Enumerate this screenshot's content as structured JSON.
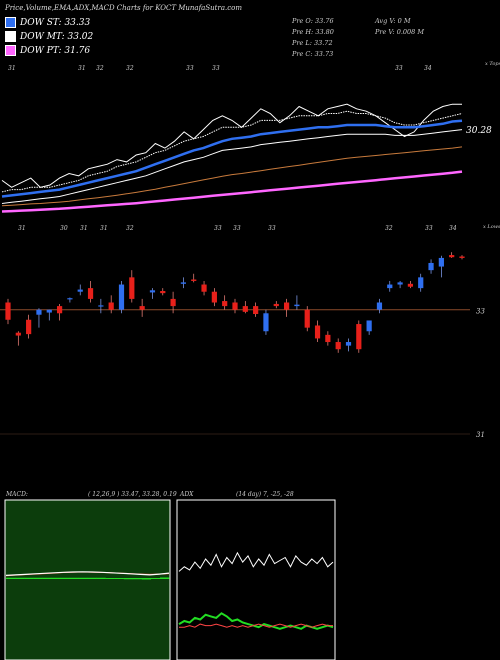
{
  "header": {
    "title": "Price,Volume,EMA,ADX,MACD Charts for KOCT MunafaSutra.com"
  },
  "legend": [
    {
      "label": "DOW ST: 33.33",
      "color": "#2f6ff0"
    },
    {
      "label": "DOW MT: 33.02",
      "color": "#ffffff"
    },
    {
      "label": "DOW PT: 31.76",
      "color": "#ff66ff"
    }
  ],
  "stats": {
    "open": "Pre  O: 33.76",
    "high": "Pre  H: 33.80",
    "low": "Pre  L: 33.72",
    "close": "Pre  C: 33.73",
    "avg_volume": "Avg V: 0  M",
    "pre_volume": "Pre  V: 0.008  M"
  },
  "chart_data": [
    {
      "type": "line",
      "name": "ema-price-panel",
      "corner_label": "x Tops",
      "last_value_label": "30.28",
      "top_ticks": [
        "31",
        "31",
        "32",
        "32",
        "33",
        "33",
        "33",
        "34"
      ],
      "series": [
        {
          "color": "#ffffff",
          "values": [
            27.7,
            27.4,
            27.6,
            27.8,
            27.4,
            27.5,
            27.8,
            28.0,
            27.9,
            28.2,
            28.3,
            28.4,
            28.6,
            28.5,
            28.8,
            28.9,
            29.3,
            29.1,
            29.4,
            29.8,
            29.5,
            29.9,
            30.3,
            30.5,
            30.3,
            30.0,
            30.4,
            30.8,
            30.6,
            30.2,
            30.5,
            30.9,
            30.7,
            30.5,
            30.8,
            30.9,
            31.0,
            30.8,
            30.7,
            30.5,
            30.2,
            29.9,
            29.6,
            29.8,
            30.3,
            30.7,
            30.9,
            31.0,
            31.0
          ]
        },
        {
          "color": "#ffffff",
          "values": [
            27.2,
            27.3,
            27.3,
            27.4,
            27.4,
            27.4,
            27.5,
            27.6,
            27.7,
            27.9,
            28.0,
            28.1,
            28.3,
            28.4,
            28.5,
            28.7,
            28.9,
            29.0,
            29.2,
            29.4,
            29.5,
            29.6,
            29.8,
            30.0,
            30.0,
            30.0,
            30.1,
            30.3,
            30.3,
            30.3,
            30.4,
            30.5,
            30.5,
            30.5,
            30.6,
            30.6,
            30.7,
            30.6,
            30.6,
            30.5,
            30.4,
            30.2,
            30.1,
            30.1,
            30.2,
            30.3,
            30.4,
            30.5,
            30.6
          ]
        },
        {
          "color": "#2f6ff0",
          "values": [
            27.0,
            27.05,
            27.1,
            27.15,
            27.2,
            27.25,
            27.3,
            27.4,
            27.5,
            27.6,
            27.7,
            27.8,
            27.9,
            28.0,
            28.1,
            28.25,
            28.4,
            28.55,
            28.7,
            28.85,
            29.0,
            29.1,
            29.25,
            29.4,
            29.5,
            29.55,
            29.6,
            29.7,
            29.75,
            29.8,
            29.85,
            29.9,
            29.95,
            30.0,
            30.0,
            30.05,
            30.1,
            30.1,
            30.1,
            30.1,
            30.05,
            30.0,
            30.0,
            30.0,
            30.05,
            30.1,
            30.15,
            30.25,
            30.28
          ]
        },
        {
          "color": "#ffffff",
          "values": [
            26.7,
            26.75,
            26.8,
            26.85,
            26.9,
            26.95,
            27.0,
            27.1,
            27.2,
            27.3,
            27.4,
            27.5,
            27.6,
            27.7,
            27.8,
            27.9,
            28.05,
            28.2,
            28.35,
            28.5,
            28.6,
            28.7,
            28.85,
            29.0,
            29.05,
            29.1,
            29.15,
            29.25,
            29.3,
            29.35,
            29.4,
            29.45,
            29.5,
            29.55,
            29.6,
            29.65,
            29.7,
            29.7,
            29.7,
            29.7,
            29.7,
            29.65,
            29.65,
            29.65,
            29.7,
            29.75,
            29.8,
            29.85,
            29.9
          ]
        },
        {
          "color": "#c77a3c",
          "values": [
            26.6,
            26.62,
            26.65,
            26.68,
            26.7,
            26.73,
            26.76,
            26.8,
            26.85,
            26.9,
            26.95,
            27.0,
            27.06,
            27.12,
            27.18,
            27.25,
            27.32,
            27.4,
            27.48,
            27.56,
            27.64,
            27.72,
            27.8,
            27.88,
            27.95,
            28.0,
            28.06,
            28.12,
            28.18,
            28.24,
            28.3,
            28.36,
            28.42,
            28.48,
            28.54,
            28.6,
            28.66,
            28.7,
            28.74,
            28.78,
            28.82,
            28.86,
            28.9,
            28.94,
            28.98,
            29.02,
            29.06,
            29.1,
            29.15
          ]
        },
        {
          "color": "#ff66ff",
          "values": [
            26.35,
            26.37,
            26.39,
            26.41,
            26.43,
            26.45,
            26.47,
            26.5,
            26.53,
            26.56,
            26.59,
            26.62,
            26.65,
            26.68,
            26.71,
            26.75,
            26.79,
            26.83,
            26.87,
            26.91,
            26.95,
            26.99,
            27.03,
            27.07,
            27.11,
            27.15,
            27.19,
            27.23,
            27.27,
            27.31,
            27.35,
            27.39,
            27.43,
            27.47,
            27.51,
            27.55,
            27.59,
            27.63,
            27.67,
            27.71,
            27.75,
            27.79,
            27.83,
            27.87,
            27.91,
            27.95,
            27.99,
            28.03,
            28.08
          ]
        }
      ]
    },
    {
      "type": "candlestick",
      "name": "price-candles",
      "corner_label": "x Lows",
      "top_ticks": [
        "31",
        "30",
        "31",
        "31",
        "32",
        "33",
        "33",
        "33",
        "32",
        "33",
        "34"
      ],
      "price_labels": [
        "33",
        "31"
      ],
      "reference_line": 33.0,
      "candles": [
        {
          "o": 33.1,
          "h": 33.15,
          "l": 32.8,
          "c": 32.86
        },
        {
          "o": 32.68,
          "h": 32.7,
          "l": 32.5,
          "c": 32.64
        },
        {
          "o": 32.86,
          "h": 32.93,
          "l": 32.6,
          "c": 32.66
        },
        {
          "o": 32.93,
          "h": 33.02,
          "l": 32.75,
          "c": 33.0
        },
        {
          "o": 32.96,
          "h": 33.0,
          "l": 32.85,
          "c": 33.0
        },
        {
          "o": 33.05,
          "h": 33.08,
          "l": 32.85,
          "c": 32.95
        },
        {
          "o": 33.15,
          "h": 33.17,
          "l": 33.1,
          "c": 33.16
        },
        {
          "o": 33.25,
          "h": 33.35,
          "l": 33.2,
          "c": 33.28
        },
        {
          "o": 33.3,
          "h": 33.4,
          "l": 33.1,
          "c": 33.15
        },
        {
          "o": 33.05,
          "h": 33.15,
          "l": 32.95,
          "c": 33.06
        },
        {
          "o": 33.1,
          "h": 33.2,
          "l": 32.95,
          "c": 33.0
        },
        {
          "o": 33.0,
          "h": 33.4,
          "l": 32.95,
          "c": 33.35
        },
        {
          "o": 33.45,
          "h": 33.55,
          "l": 33.1,
          "c": 33.15
        },
        {
          "o": 33.05,
          "h": 33.15,
          "l": 32.9,
          "c": 33.0
        },
        {
          "o": 33.24,
          "h": 33.3,
          "l": 33.15,
          "c": 33.27
        },
        {
          "o": 33.26,
          "h": 33.3,
          "l": 33.2,
          "c": 33.23
        },
        {
          "o": 33.15,
          "h": 33.25,
          "l": 32.95,
          "c": 33.05
        },
        {
          "o": 33.36,
          "h": 33.45,
          "l": 33.3,
          "c": 33.38
        },
        {
          "o": 33.42,
          "h": 33.5,
          "l": 33.38,
          "c": 33.4
        },
        {
          "o": 33.35,
          "h": 33.4,
          "l": 33.2,
          "c": 33.25
        },
        {
          "o": 33.25,
          "h": 33.3,
          "l": 33.05,
          "c": 33.1
        },
        {
          "o": 33.12,
          "h": 33.2,
          "l": 33.0,
          "c": 33.05
        },
        {
          "o": 33.1,
          "h": 33.15,
          "l": 32.95,
          "c": 33.0
        },
        {
          "o": 33.05,
          "h": 33.12,
          "l": 32.95,
          "c": 32.97
        },
        {
          "o": 33.05,
          "h": 33.1,
          "l": 32.9,
          "c": 32.94
        },
        {
          "o": 32.7,
          "h": 33.0,
          "l": 32.65,
          "c": 32.95
        },
        {
          "o": 33.08,
          "h": 33.12,
          "l": 33.02,
          "c": 33.05
        },
        {
          "o": 33.1,
          "h": 33.15,
          "l": 32.9,
          "c": 33.0
        },
        {
          "o": 33.05,
          "h": 33.2,
          "l": 33.0,
          "c": 33.07
        },
        {
          "o": 33.0,
          "h": 33.05,
          "l": 32.7,
          "c": 32.75
        },
        {
          "o": 32.78,
          "h": 32.85,
          "l": 32.55,
          "c": 32.6
        },
        {
          "o": 32.65,
          "h": 32.7,
          "l": 32.5,
          "c": 32.55
        },
        {
          "o": 32.55,
          "h": 32.6,
          "l": 32.4,
          "c": 32.45
        },
        {
          "o": 32.5,
          "h": 32.6,
          "l": 32.42,
          "c": 32.55
        },
        {
          "o": 32.8,
          "h": 32.85,
          "l": 32.4,
          "c": 32.45
        },
        {
          "o": 32.7,
          "h": 32.85,
          "l": 32.65,
          "c": 32.85
        },
        {
          "o": 33.0,
          "h": 33.15,
          "l": 32.95,
          "c": 33.1
        },
        {
          "o": 33.3,
          "h": 33.4,
          "l": 33.25,
          "c": 33.35
        },
        {
          "o": 33.35,
          "h": 33.4,
          "l": 33.3,
          "c": 33.38
        },
        {
          "o": 33.36,
          "h": 33.4,
          "l": 33.3,
          "c": 33.32
        },
        {
          "o": 33.3,
          "h": 33.5,
          "l": 33.25,
          "c": 33.45
        },
        {
          "o": 33.55,
          "h": 33.7,
          "l": 33.5,
          "c": 33.65
        },
        {
          "o": 33.6,
          "h": 33.75,
          "l": 33.45,
          "c": 33.72
        },
        {
          "o": 33.76,
          "h": 33.8,
          "l": 33.72,
          "c": 33.73
        },
        {
          "o": 33.74,
          "h": 33.76,
          "l": 33.7,
          "c": 33.72
        }
      ]
    },
    {
      "type": "line",
      "name": "macd-panel",
      "title": "MACD:",
      "params": "( 12,26,9 ) 33.47, 33.28, 0.19",
      "series": [
        {
          "color": "#ffffff",
          "values": [
            0.1,
            0.12,
            0.14,
            0.16,
            0.18,
            0.2,
            0.22,
            0.23,
            0.24,
            0.23,
            0.22,
            0.2,
            0.18,
            0.16,
            0.14,
            0.12,
            0.15,
            0.19
          ]
        },
        {
          "color": "#ff4444",
          "values": [
            0.09,
            0.11,
            0.13,
            0.15,
            0.17,
            0.19,
            0.21,
            0.22,
            0.23,
            0.22,
            0.21,
            0.2,
            0.18,
            0.17,
            0.15,
            0.14,
            0.15,
            0.17
          ]
        },
        {
          "color": "#22dd22",
          "values": [
            0.01,
            0.01,
            0.01,
            0.01,
            0.01,
            0.01,
            0.01,
            0.01,
            0.01,
            0.01,
            0.01,
            0.0,
            0.0,
            -0.01,
            -0.01,
            -0.02,
            0.0,
            0.02
          ]
        }
      ]
    },
    {
      "type": "line",
      "name": "adx-panel",
      "title": "ADX",
      "params": "(14 day) 7, -25, -28",
      "series": [
        {
          "color": "#ffffff",
          "values": [
            52,
            55,
            53,
            58,
            54,
            60,
            56,
            63,
            55,
            61,
            57,
            64,
            58,
            62,
            55,
            60,
            56,
            63,
            57,
            59,
            61,
            55,
            62,
            58,
            56,
            60,
            57,
            61,
            55,
            58
          ]
        },
        {
          "color": "#22dd22",
          "values": [
            18,
            20,
            19,
            22,
            21,
            24,
            23,
            22,
            25,
            23,
            20,
            21,
            19,
            18,
            17,
            16,
            18,
            17,
            16,
            15,
            16,
            17,
            16,
            15,
            17,
            16,
            15,
            16,
            17,
            16
          ]
        },
        {
          "color": "#ff4444",
          "values": [
            16,
            16,
            17,
            16,
            18,
            17,
            17,
            18,
            17,
            16,
            17,
            16,
            17,
            16,
            17,
            18,
            17,
            16,
            17,
            18,
            17,
            16,
            17,
            18,
            17,
            16,
            17,
            18,
            17,
            17
          ]
        }
      ]
    }
  ]
}
